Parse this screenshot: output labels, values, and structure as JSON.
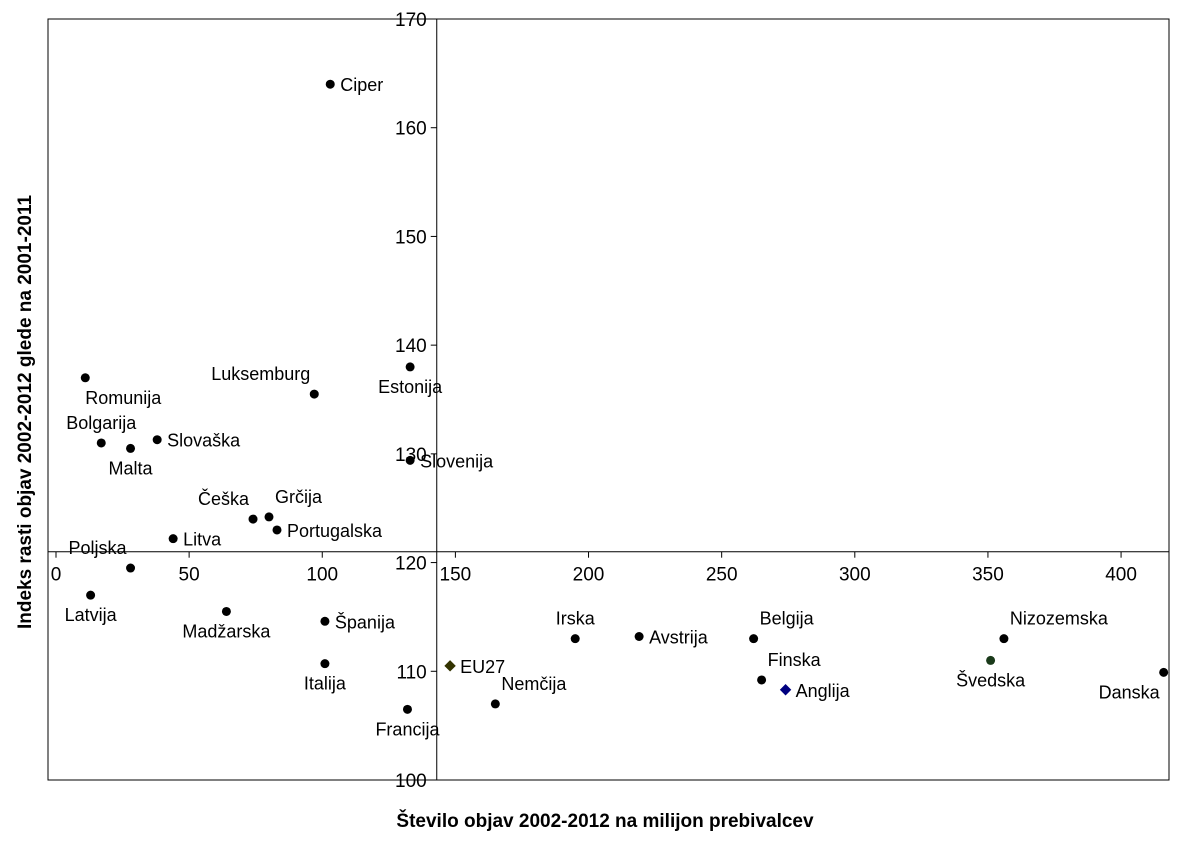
{
  "chart_data": {
    "type": "scatter",
    "title": "",
    "xlabel": "Število objav 2002-2012 na milijon prebivalcev",
    "ylabel": "Indeks rasti objav 2002-2012 glede na 2001-2011",
    "xlim": [
      -3,
      418
    ],
    "ylim": [
      100,
      170
    ],
    "x_ticks": [
      0,
      50,
      100,
      150,
      200,
      250,
      300,
      350,
      400
    ],
    "y_ticks": [
      100,
      110,
      120,
      130,
      140,
      150,
      160,
      170
    ],
    "x_axis_crosses_y": 121,
    "y_axis_crosses_x": 143,
    "grid": false,
    "points": [
      {
        "label": "Ciper",
        "x": 103,
        "y": 164,
        "marker": "circle",
        "color": "#000000",
        "label_color": "#000000",
        "label_pos": "right"
      },
      {
        "label": "Estonija",
        "x": 133,
        "y": 138,
        "marker": "circle",
        "color": "#000000",
        "label_color": "#000000",
        "label_pos": "below"
      },
      {
        "label": "Luksemburg",
        "x": 97,
        "y": 135.5,
        "marker": "circle",
        "color": "#000000",
        "label_color": "#000000",
        "label_pos": "above-left"
      },
      {
        "label": "Romunija",
        "x": 11,
        "y": 137,
        "marker": "circle",
        "color": "#000000",
        "label_color": "#000000",
        "label_pos": "below-right"
      },
      {
        "label": "Bolgarija",
        "x": 17,
        "y": 131,
        "marker": "circle",
        "color": "#000000",
        "label_color": "#000000",
        "label_pos": "above"
      },
      {
        "label": "Slovaška",
        "x": 38,
        "y": 131.3,
        "marker": "circle",
        "color": "#000000",
        "label_color": "#000000",
        "label_pos": "right"
      },
      {
        "label": "Malta",
        "x": 28,
        "y": 130.5,
        "marker": "circle",
        "color": "#000000",
        "label_color": "#000000",
        "label_pos": "below"
      },
      {
        "label": "Slovenija",
        "x": 133,
        "y": 129.4,
        "marker": "circle",
        "color": "#000000",
        "label_color": "#ff0000",
        "label_pos": "right"
      },
      {
        "label": "Češka",
        "x": 74,
        "y": 124,
        "marker": "circle",
        "color": "#000000",
        "label_color": "#000000",
        "label_pos": "above-left"
      },
      {
        "label": "Grčija",
        "x": 80,
        "y": 124.2,
        "marker": "circle",
        "color": "#000000",
        "label_color": "#000000",
        "label_pos": "above-right"
      },
      {
        "label": "Portugalska",
        "x": 83,
        "y": 123,
        "marker": "circle",
        "color": "#000000",
        "label_color": "#000000",
        "label_pos": "right"
      },
      {
        "label": "Litva",
        "x": 44,
        "y": 122.2,
        "marker": "circle",
        "color": "#000000",
        "label_color": "#000000",
        "label_pos": "right"
      },
      {
        "label": "Poljska",
        "x": 28,
        "y": 119.5,
        "marker": "circle",
        "color": "#000000",
        "label_color": "#000000",
        "label_pos": "above-left"
      },
      {
        "label": "Latvija",
        "x": 13,
        "y": 117,
        "marker": "circle",
        "color": "#000000",
        "label_color": "#000000",
        "label_pos": "below"
      },
      {
        "label": "Madžarska",
        "x": 64,
        "y": 115.5,
        "marker": "circle",
        "color": "#000000",
        "label_color": "#000000",
        "label_pos": "below"
      },
      {
        "label": "Španija",
        "x": 101,
        "y": 114.6,
        "marker": "circle",
        "color": "#000000",
        "label_color": "#000000",
        "label_pos": "right"
      },
      {
        "label": "Italija",
        "x": 101,
        "y": 110.7,
        "marker": "circle",
        "color": "#000000",
        "label_color": "#000000",
        "label_pos": "below"
      },
      {
        "label": "Francija",
        "x": 132,
        "y": 106.5,
        "marker": "circle",
        "color": "#000000",
        "label_color": "#000000",
        "label_pos": "below"
      },
      {
        "label": "EU27",
        "x": 148,
        "y": 110.5,
        "marker": "diamond",
        "color": "#333300",
        "label_color": "#000000",
        "label_pos": "right"
      },
      {
        "label": "Nemčija",
        "x": 165,
        "y": 107,
        "marker": "circle",
        "color": "#000000",
        "label_color": "#000000",
        "label_pos": "above-right"
      },
      {
        "label": "Irska",
        "x": 195,
        "y": 113,
        "marker": "circle",
        "color": "#000000",
        "label_color": "#000000",
        "label_pos": "above"
      },
      {
        "label": "Avstrija",
        "x": 219,
        "y": 113.2,
        "marker": "circle",
        "color": "#000000",
        "label_color": "#000000",
        "label_pos": "right"
      },
      {
        "label": "Belgija",
        "x": 262,
        "y": 113,
        "marker": "circle",
        "color": "#000000",
        "label_color": "#000000",
        "label_pos": "above-right"
      },
      {
        "label": "Finska",
        "x": 265,
        "y": 109.2,
        "marker": "circle",
        "color": "#000000",
        "label_color": "#000000",
        "label_pos": "above-right"
      },
      {
        "label": "Anglija",
        "x": 274,
        "y": 108.3,
        "marker": "diamond",
        "color": "#000080",
        "label_color": "#000000",
        "label_pos": "right"
      },
      {
        "label": "Nizozemska",
        "x": 356,
        "y": 113,
        "marker": "circle",
        "color": "#000000",
        "label_color": "#000000",
        "label_pos": "above-right"
      },
      {
        "label": "Švedska",
        "x": 351,
        "y": 111,
        "marker": "circle",
        "color": "#1a3a1a",
        "label_color": "#000000",
        "label_pos": "below"
      },
      {
        "label": "Danska",
        "x": 416,
        "y": 109.9,
        "marker": "circle",
        "color": "#000000",
        "label_color": "#000000",
        "label_pos": "below-left"
      }
    ]
  }
}
